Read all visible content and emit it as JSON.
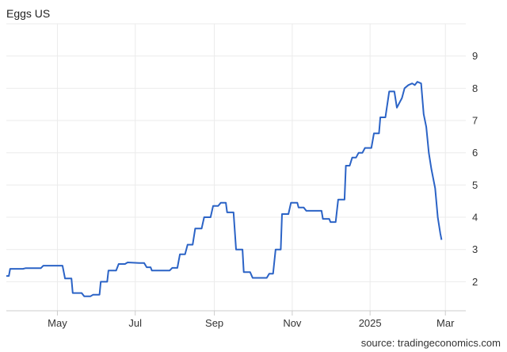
{
  "title": "Eggs US",
  "source": "source: tradingeconomics.com",
  "colors": {
    "line": "#2b63c6",
    "grid": "#ebebeb",
    "axis": "#cccccc",
    "text": "#333333"
  },
  "chart_data": {
    "type": "line",
    "title": "Eggs US",
    "xlabel": "",
    "ylabel": "",
    "x_ticks": [
      {
        "label": "May",
        "day": 30
      },
      {
        "label": "Jul",
        "day": 91
      },
      {
        "label": "Sep",
        "day": 153
      },
      {
        "label": "Nov",
        "day": 214
      },
      {
        "label": "2025",
        "day": 275
      },
      {
        "label": "Mar",
        "day": 334
      }
    ],
    "xlim": [
      -10,
      350
    ],
    "y_ticks": [
      2,
      3,
      4,
      5,
      6,
      7,
      8,
      9
    ],
    "ylim": [
      1.1,
      10
    ],
    "y_axis_position": "right",
    "grid": true,
    "series": [
      {
        "values": [
          [
            -10,
            2.18
          ],
          [
            -8,
            2.18
          ],
          [
            -7,
            2.4
          ],
          [
            3,
            2.4
          ],
          [
            5,
            2.42
          ],
          [
            17,
            2.42
          ],
          [
            19,
            2.5
          ],
          [
            27,
            2.5
          ],
          [
            34,
            2.5
          ],
          [
            36,
            2.1
          ],
          [
            41,
            2.1
          ],
          [
            42,
            1.65
          ],
          [
            49,
            1.65
          ],
          [
            51,
            1.55
          ],
          [
            56,
            1.55
          ],
          [
            58,
            1.6
          ],
          [
            63,
            1.6
          ],
          [
            64,
            2.0
          ],
          [
            69,
            2.0
          ],
          [
            70,
            2.35
          ],
          [
            76,
            2.35
          ],
          [
            78,
            2.55
          ],
          [
            83,
            2.55
          ],
          [
            85,
            2.6
          ],
          [
            94,
            2.58
          ],
          [
            98,
            2.58
          ],
          [
            100,
            2.45
          ],
          [
            103,
            2.45
          ],
          [
            104,
            2.35
          ],
          [
            118,
            2.35
          ],
          [
            120,
            2.43
          ],
          [
            124,
            2.43
          ],
          [
            126,
            2.85
          ],
          [
            130,
            2.85
          ],
          [
            132,
            3.15
          ],
          [
            136,
            3.15
          ],
          [
            138,
            3.65
          ],
          [
            143,
            3.65
          ],
          [
            145,
            4.0
          ],
          [
            150,
            4.0
          ],
          [
            152,
            4.35
          ],
          [
            156,
            4.35
          ],
          [
            158,
            4.45
          ],
          [
            162,
            4.45
          ],
          [
            163,
            4.15
          ],
          [
            168,
            4.15
          ],
          [
            170,
            3.0
          ],
          [
            175,
            3.0
          ],
          [
            176,
            2.3
          ],
          [
            181,
            2.3
          ],
          [
            183,
            2.12
          ],
          [
            194,
            2.12
          ],
          [
            196,
            2.25
          ],
          [
            199,
            2.25
          ],
          [
            201,
            3.0
          ],
          [
            205,
            3.0
          ],
          [
            206,
            4.1
          ],
          [
            211,
            4.1
          ],
          [
            213,
            4.45
          ],
          [
            218,
            4.45
          ],
          [
            219,
            4.3
          ],
          [
            223,
            4.3
          ],
          [
            225,
            4.2
          ],
          [
            237,
            4.2
          ],
          [
            238,
            3.95
          ],
          [
            243,
            3.95
          ],
          [
            244,
            3.85
          ],
          [
            248,
            3.85
          ],
          [
            250,
            4.55
          ],
          [
            255,
            4.55
          ],
          [
            256,
            5.6
          ],
          [
            259,
            5.6
          ],
          [
            261,
            5.85
          ],
          [
            264,
            5.85
          ],
          [
            266,
            6.0
          ],
          [
            269,
            6.0
          ],
          [
            271,
            6.15
          ],
          [
            276,
            6.15
          ],
          [
            278,
            6.6
          ],
          [
            282,
            6.6
          ],
          [
            283,
            7.1
          ],
          [
            287,
            7.1
          ],
          [
            290,
            7.9
          ],
          [
            294,
            7.9
          ],
          [
            296,
            7.4
          ],
          [
            298,
            7.55
          ],
          [
            300,
            7.7
          ],
          [
            302,
            8.0
          ],
          [
            305,
            8.1
          ],
          [
            308,
            8.15
          ],
          [
            310,
            8.1
          ],
          [
            312,
            8.2
          ],
          [
            315,
            8.15
          ],
          [
            317,
            7.2
          ],
          [
            319,
            6.8
          ],
          [
            321,
            6.0
          ],
          [
            323,
            5.5
          ],
          [
            326,
            4.9
          ],
          [
            328,
            4.0
          ],
          [
            330,
            3.5
          ],
          [
            331,
            3.3
          ]
        ]
      }
    ]
  }
}
